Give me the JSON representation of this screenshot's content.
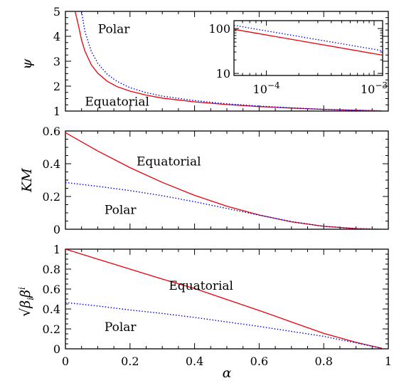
{
  "chart_data": [
    {
      "type": "line",
      "ylabel": "ψ",
      "xlim": [
        0,
        1
      ],
      "ylim": [
        1,
        5
      ],
      "y_ticks": [
        "1",
        "2",
        "3",
        "4",
        "5"
      ],
      "series": [
        {
          "color": "#e8000b",
          "style": "solid",
          "x": [
            0.03,
            0.04,
            0.05,
            0.06,
            0.08,
            0.1,
            0.13,
            0.16,
            0.2,
            0.25,
            0.3,
            0.4,
            0.5,
            0.6,
            0.7,
            0.8,
            0.9,
            0.98
          ],
          "y": [
            5.0,
            4.45,
            3.85,
            3.42,
            2.86,
            2.52,
            2.19,
            1.98,
            1.8,
            1.64,
            1.52,
            1.37,
            1.26,
            1.18,
            1.12,
            1.07,
            1.03,
            1.01
          ]
        },
        {
          "color": "#0000e0",
          "style": "dotted",
          "x": [
            0.05,
            0.06,
            0.08,
            0.1,
            0.13,
            0.16,
            0.2,
            0.25,
            0.3,
            0.4,
            0.5,
            0.6,
            0.7,
            0.8,
            0.9,
            0.98
          ],
          "y": [
            5.0,
            4.22,
            3.4,
            2.92,
            2.47,
            2.19,
            1.94,
            1.74,
            1.6,
            1.42,
            1.29,
            1.2,
            1.13,
            1.07,
            1.03,
            1.01
          ]
        }
      ],
      "annotations": [
        {
          "text": "Polar",
          "x": 0.15,
          "y": 4.3
        },
        {
          "text": "Equatorial",
          "x": 0.16,
          "y": 1.38
        }
      ],
      "inset": {
        "log_x": true,
        "log_y": true,
        "xlim": [
          5e-05,
          0.0012
        ],
        "ylim": [
          9,
          150
        ],
        "x_ticks": [
          {
            "value": 0.0001,
            "base": "10",
            "exp": "−4"
          },
          {
            "value": 0.001,
            "base": "10",
            "exp": "−3"
          }
        ],
        "y_ticks": [
          {
            "value": 10,
            "label": "10"
          },
          {
            "value": 100,
            "label": "100"
          }
        ],
        "series": [
          {
            "color": "#e8000b",
            "style": "solid",
            "x": [
              5e-05,
              0.0012
            ],
            "y": [
              96,
              25.5
            ]
          },
          {
            "color": "#0000e0",
            "style": "dotted",
            "x": [
              5e-05,
              0.0012
            ],
            "y": [
              118,
              32
            ]
          }
        ]
      }
    },
    {
      "type": "line",
      "ylabel": "KM",
      "xlim": [
        0,
        1
      ],
      "ylim": [
        0,
        0.6
      ],
      "y_ticks": [
        "0",
        "0.2",
        "0.4",
        "0.6"
      ],
      "series": [
        {
          "color": "#e8000b",
          "style": "solid",
          "x": [
            0,
            0.1,
            0.2,
            0.3,
            0.4,
            0.5,
            0.6,
            0.7,
            0.8,
            0.9,
            0.98
          ],
          "y": [
            0.59,
            0.478,
            0.376,
            0.286,
            0.207,
            0.141,
            0.087,
            0.045,
            0.018,
            0.004,
            0.0
          ]
        },
        {
          "color": "#0000e0",
          "style": "dotted",
          "x": [
            0,
            0.1,
            0.2,
            0.3,
            0.4,
            0.5,
            0.6,
            0.7,
            0.8,
            0.9,
            0.98
          ],
          "y": [
            0.285,
            0.262,
            0.236,
            0.205,
            0.168,
            0.127,
            0.086,
            0.047,
            0.018,
            0.004,
            0.0
          ]
        }
      ],
      "annotations": [
        {
          "text": "Equatorial",
          "x": 0.32,
          "y": 0.415
        },
        {
          "text": "Polar",
          "x": 0.17,
          "y": 0.12
        }
      ]
    },
    {
      "type": "line",
      "ylabel": "√β_iβ^i",
      "xlabel": "α",
      "xlim": [
        0,
        1
      ],
      "ylim": [
        0,
        1
      ],
      "x_ticks": [
        "0",
        "0.2",
        "0.4",
        "0.6",
        "0.8",
        "1"
      ],
      "y_ticks": [
        "0",
        "0.2",
        "0.4",
        "0.6",
        "0.8",
        "1"
      ],
      "series": [
        {
          "color": "#e8000b",
          "style": "solid",
          "x": [
            0,
            0.1,
            0.2,
            0.3,
            0.4,
            0.5,
            0.6,
            0.7,
            0.8,
            0.9,
            0.98
          ],
          "y": [
            1.0,
            0.9,
            0.8,
            0.7,
            0.605,
            0.495,
            0.385,
            0.27,
            0.155,
            0.065,
            0.005
          ]
        },
        {
          "color": "#0000e0",
          "style": "dotted",
          "x": [
            0,
            0.1,
            0.2,
            0.3,
            0.4,
            0.5,
            0.6,
            0.7,
            0.8,
            0.9,
            0.98
          ],
          "y": [
            0.465,
            0.43,
            0.39,
            0.355,
            0.315,
            0.27,
            0.225,
            0.175,
            0.125,
            0.06,
            0.005
          ]
        }
      ],
      "annotations": [
        {
          "text": "Equatorial",
          "x": 0.42,
          "y": 0.635
        },
        {
          "text": "Polar",
          "x": 0.17,
          "y": 0.22
        }
      ]
    }
  ]
}
